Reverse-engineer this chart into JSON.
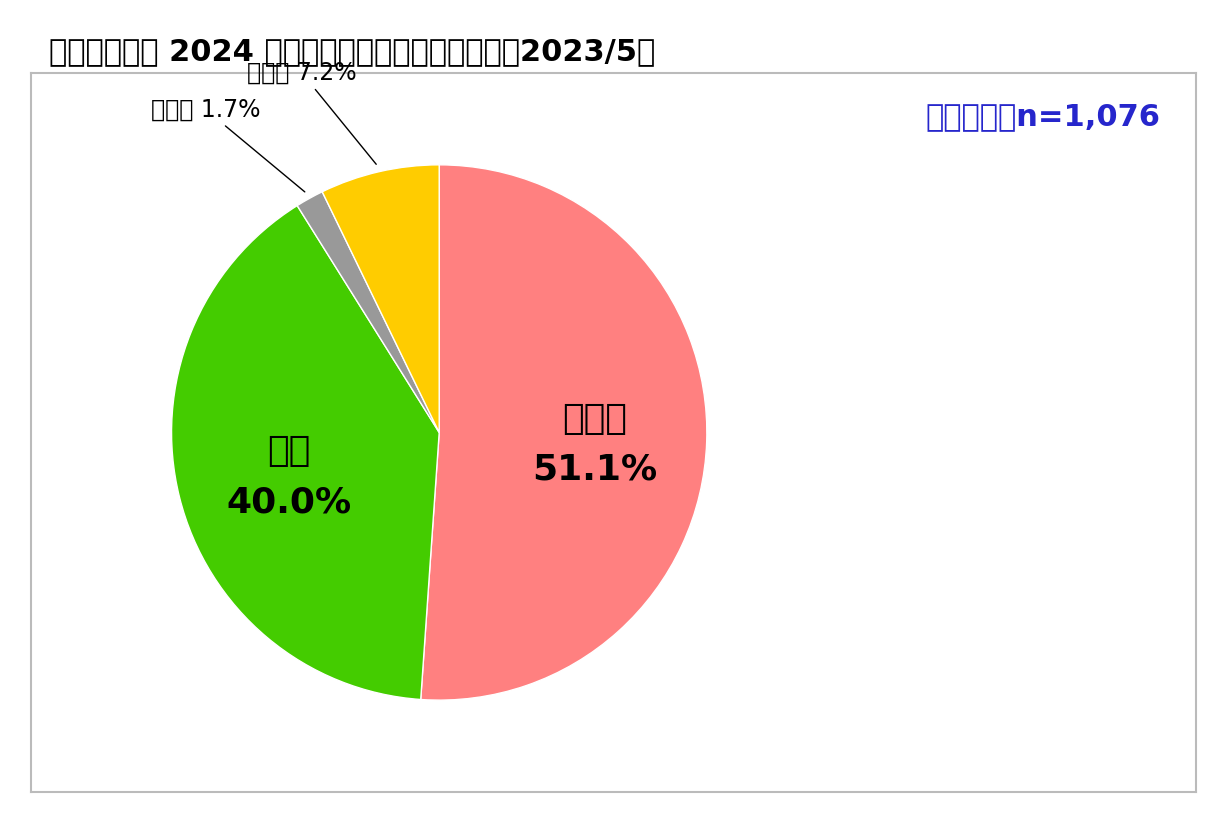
{
  "title": "圖１：國人對 2024 民進黨再次完全執政的態度　（2023/5）",
  "sample_text": "樣本總數：n=1,076",
  "sample_color": "#2626cc",
  "slices": [
    {
      "label": "不支持",
      "pct": 51.1,
      "color": "#FF8080",
      "inside": true,
      "r_label": 0.55
    },
    {
      "label": "支持",
      "pct": 40.0,
      "color": "#44CC00",
      "inside": true,
      "r_label": 0.55
    },
    {
      "label": "不知道",
      "pct": 1.7,
      "color": "#999999",
      "inside": false,
      "r_label": 1.0
    },
    {
      "label": "沒意見",
      "pct": 7.2,
      "color": "#FFCC00",
      "inside": false,
      "r_label": 1.0
    }
  ],
  "title_fontsize": 22,
  "inside_label_fontsize": 26,
  "inside_pct_fontsize": 26,
  "outside_label_fontsize": 17,
  "sample_fontsize": 22,
  "background_color": "#ffffff",
  "box_edgecolor": "#bbbbbb",
  "startangle": 90,
  "counterclock": false
}
